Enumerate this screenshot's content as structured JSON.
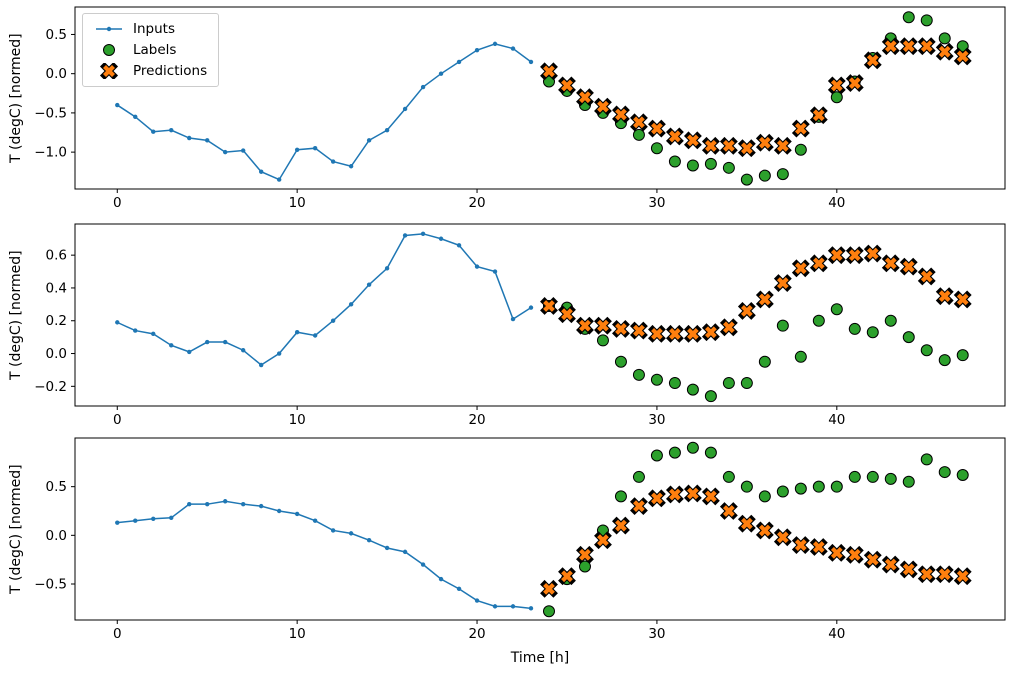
{
  "figure": {
    "xlabel": "Time [h]",
    "ylabel": "T (degC) [normed]",
    "legend": {
      "items": [
        {
          "label": "Inputs",
          "marker": "line-dot",
          "color": "#1f77b4"
        },
        {
          "label": "Labels",
          "marker": "circle",
          "color": "#2ca02c"
        },
        {
          "label": "Predictions",
          "marker": "x",
          "color": "#ff7f0e"
        }
      ]
    }
  },
  "chart_data": [
    {
      "type": "line+scatter",
      "ylabel": "T (degC) [normed]",
      "xlim": [
        -2.35,
        49.35
      ],
      "ylim": [
        -1.47,
        0.85
      ],
      "xticks": [
        0,
        10,
        20,
        30,
        40
      ],
      "xtick_labels": [
        "0",
        "10",
        "20",
        "30",
        "40"
      ],
      "yticks": [
        0.5,
        0.0,
        -0.5,
        -1.0
      ],
      "ytick_labels": [
        "0.5",
        "0.0",
        "−0.5",
        "−1.0"
      ],
      "series": [
        {
          "name": "Inputs",
          "type": "line",
          "color": "#1f77b4",
          "x": [
            0,
            1,
            2,
            3,
            4,
            5,
            6,
            7,
            8,
            9,
            10,
            11,
            12,
            13,
            14,
            15,
            16,
            17,
            18,
            19,
            20,
            21,
            22,
            23
          ],
          "y": [
            -0.4,
            -0.55,
            -0.74,
            -0.72,
            -0.82,
            -0.85,
            -1.0,
            -0.98,
            -1.25,
            -1.35,
            -0.97,
            -0.95,
            -1.12,
            -1.18,
            -0.85,
            -0.72,
            -0.45,
            -0.17,
            0.0,
            0.15,
            0.3,
            0.38,
            0.32,
            0.15
          ]
        },
        {
          "name": "Labels",
          "type": "scatter-circle",
          "color": "#2ca02c",
          "x": [
            24,
            25,
            26,
            27,
            28,
            29,
            30,
            31,
            32,
            33,
            34,
            35,
            36,
            37,
            38,
            39,
            40,
            41,
            42,
            43,
            44,
            45,
            46,
            47
          ],
          "y": [
            -0.1,
            -0.22,
            -0.4,
            -0.5,
            -0.63,
            -0.78,
            -0.95,
            -1.12,
            -1.17,
            -1.15,
            -1.2,
            -1.35,
            -1.3,
            -1.28,
            -0.97,
            -0.55,
            -0.3,
            -0.1,
            0.2,
            0.45,
            0.72,
            0.68,
            0.45,
            0.35
          ]
        },
        {
          "name": "Predictions",
          "type": "scatter-x",
          "color": "#ff7f0e",
          "x": [
            24,
            25,
            26,
            27,
            28,
            29,
            30,
            31,
            32,
            33,
            34,
            35,
            36,
            37,
            38,
            39,
            40,
            41,
            42,
            43,
            44,
            45,
            46,
            47
          ],
          "y": [
            0.03,
            -0.15,
            -0.3,
            -0.42,
            -0.52,
            -0.62,
            -0.7,
            -0.8,
            -0.85,
            -0.92,
            -0.92,
            -0.95,
            -0.88,
            -0.92,
            -0.7,
            -0.53,
            -0.15,
            -0.12,
            0.17,
            0.35,
            0.35,
            0.35,
            0.28,
            0.22
          ]
        }
      ]
    },
    {
      "type": "line+scatter",
      "ylabel": "T (degC) [normed]",
      "xlim": [
        -2.35,
        49.35
      ],
      "ylim": [
        -0.32,
        0.79
      ],
      "xticks": [
        0,
        10,
        20,
        30,
        40
      ],
      "xtick_labels": [
        "0",
        "10",
        "20",
        "30",
        "40"
      ],
      "yticks": [
        0.6,
        0.4,
        0.2,
        0.0,
        -0.2
      ],
      "ytick_labels": [
        "0.6",
        "0.4",
        "0.2",
        "0.0",
        "−0.2"
      ],
      "series": [
        {
          "name": "Inputs",
          "type": "line",
          "color": "#1f77b4",
          "x": [
            0,
            1,
            2,
            3,
            4,
            5,
            6,
            7,
            8,
            9,
            10,
            11,
            12,
            13,
            14,
            15,
            16,
            17,
            18,
            19,
            20,
            21,
            22,
            23
          ],
          "y": [
            0.19,
            0.14,
            0.12,
            0.05,
            0.01,
            0.07,
            0.07,
            0.02,
            -0.07,
            0.0,
            0.13,
            0.11,
            0.2,
            0.3,
            0.42,
            0.52,
            0.72,
            0.73,
            0.7,
            0.66,
            0.53,
            0.5,
            0.21,
            0.28
          ]
        },
        {
          "name": "Labels",
          "type": "scatter-circle",
          "color": "#2ca02c",
          "x": [
            24,
            25,
            26,
            27,
            28,
            29,
            30,
            31,
            32,
            33,
            34,
            35,
            36,
            37,
            38,
            39,
            40,
            41,
            42,
            43,
            44,
            45,
            46,
            47
          ],
          "y": [
            0.29,
            0.28,
            0.15,
            0.08,
            -0.05,
            -0.13,
            -0.16,
            -0.18,
            -0.22,
            -0.26,
            -0.18,
            -0.18,
            -0.05,
            0.17,
            -0.02,
            0.2,
            0.27,
            0.15,
            0.13,
            0.2,
            0.1,
            0.02,
            -0.04,
            -0.01
          ]
        },
        {
          "name": "Predictions",
          "type": "scatter-x",
          "color": "#ff7f0e",
          "x": [
            24,
            25,
            26,
            27,
            28,
            29,
            30,
            31,
            32,
            33,
            34,
            35,
            36,
            37,
            38,
            39,
            40,
            41,
            42,
            43,
            44,
            45,
            46,
            47
          ],
          "y": [
            0.29,
            0.24,
            0.17,
            0.17,
            0.15,
            0.14,
            0.12,
            0.12,
            0.12,
            0.13,
            0.16,
            0.26,
            0.33,
            0.43,
            0.52,
            0.55,
            0.6,
            0.6,
            0.61,
            0.55,
            0.53,
            0.47,
            0.35,
            0.33
          ]
        }
      ]
    },
    {
      "type": "line+scatter",
      "ylabel": "T (degC) [normed]",
      "xlabel": "Time [h]",
      "xlim": [
        -2.35,
        49.35
      ],
      "ylim": [
        -0.87,
        1.0
      ],
      "xticks": [
        0,
        10,
        20,
        30,
        40
      ],
      "xtick_labels": [
        "0",
        "10",
        "20",
        "30",
        "40"
      ],
      "yticks": [
        0.5,
        0.0,
        -0.5
      ],
      "ytick_labels": [
        "0.5",
        "0.0",
        "−0.5"
      ],
      "series": [
        {
          "name": "Inputs",
          "type": "line",
          "color": "#1f77b4",
          "x": [
            0,
            1,
            2,
            3,
            4,
            5,
            6,
            7,
            8,
            9,
            10,
            11,
            12,
            13,
            14,
            15,
            16,
            17,
            18,
            19,
            20,
            21,
            22,
            23
          ],
          "y": [
            0.13,
            0.15,
            0.17,
            0.18,
            0.32,
            0.32,
            0.35,
            0.32,
            0.3,
            0.25,
            0.22,
            0.15,
            0.05,
            0.02,
            -0.05,
            -0.13,
            -0.17,
            -0.3,
            -0.45,
            -0.55,
            -0.67,
            -0.73,
            -0.73,
            -0.75
          ]
        },
        {
          "name": "Labels",
          "type": "scatter-circle",
          "color": "#2ca02c",
          "x": [
            24,
            25,
            26,
            27,
            28,
            29,
            30,
            31,
            32,
            33,
            34,
            35,
            36,
            37,
            38,
            39,
            40,
            41,
            42,
            43,
            44,
            45,
            46,
            47
          ],
          "y": [
            -0.78,
            -0.45,
            -0.32,
            0.05,
            0.4,
            0.6,
            0.82,
            0.85,
            0.9,
            0.85,
            0.6,
            0.5,
            0.4,
            0.45,
            0.48,
            0.5,
            0.5,
            0.6,
            0.6,
            0.58,
            0.55,
            0.78,
            0.65,
            0.62
          ]
        },
        {
          "name": "Predictions",
          "type": "scatter-x",
          "color": "#ff7f0e",
          "x": [
            24,
            25,
            26,
            27,
            28,
            29,
            30,
            31,
            32,
            33,
            34,
            35,
            36,
            37,
            38,
            39,
            40,
            41,
            42,
            43,
            44,
            45,
            46,
            47
          ],
          "y": [
            -0.55,
            -0.42,
            -0.2,
            -0.05,
            0.1,
            0.3,
            0.38,
            0.42,
            0.43,
            0.4,
            0.25,
            0.12,
            0.05,
            -0.02,
            -0.1,
            -0.12,
            -0.18,
            -0.2,
            -0.25,
            -0.3,
            -0.35,
            -0.4,
            -0.4,
            -0.42
          ]
        }
      ]
    }
  ]
}
